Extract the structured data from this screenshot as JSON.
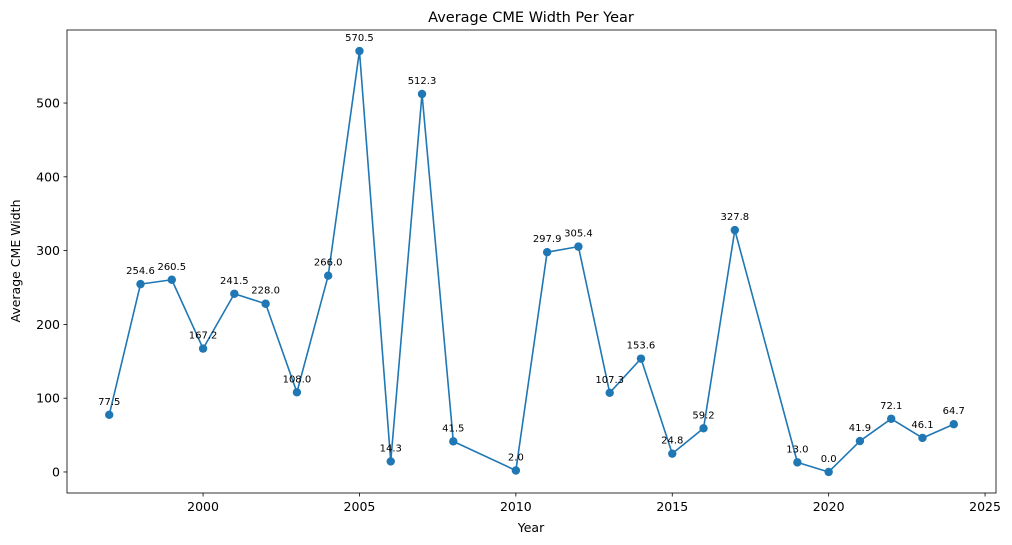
{
  "chart_data": {
    "type": "line",
    "title": "Average CME Width Per Year",
    "xlabel": "Year",
    "ylabel": "Average CME Width",
    "xlim": [
      1995.65,
      2025.35
    ],
    "ylim": [
      -28.5,
      599.0
    ],
    "xticks": [
      2000,
      2005,
      2010,
      2015,
      2020,
      2025
    ],
    "yticks": [
      0,
      100,
      200,
      300,
      400,
      500
    ],
    "grid": false,
    "legend": "none",
    "series": [
      {
        "color": "#1f77b4",
        "marker": "circle",
        "x": [
          1997,
          1998,
          1999,
          2000,
          2001,
          2002,
          2003,
          2004,
          2005,
          2006,
          2007,
          2008,
          2010,
          2011,
          2012,
          2013,
          2014,
          2015,
          2016,
          2017,
          2019,
          2020,
          2021,
          2022,
          2023,
          2024
        ],
        "y": [
          77.5,
          254.6,
          260.5,
          167.2,
          241.5,
          228.0,
          108.0,
          266.0,
          570.5,
          14.3,
          512.3,
          41.5,
          2.0,
          297.9,
          305.4,
          107.3,
          153.6,
          24.8,
          59.2,
          327.8,
          13.0,
          0.0,
          41.9,
          72.1,
          46.1,
          64.7
        ],
        "labels": [
          "77.5",
          "254.6",
          "260.5",
          "167.2",
          "241.5",
          "228.0",
          "108.0",
          "266.0",
          "570.5",
          "14.3",
          "512.3",
          "41.5",
          "2.0",
          "297.9",
          "305.4",
          "107.3",
          "153.6",
          "24.8",
          "59.2",
          "327.8",
          "13.0",
          "0.0",
          "41.9",
          "72.1",
          "46.1",
          "64.7"
        ]
      }
    ]
  }
}
